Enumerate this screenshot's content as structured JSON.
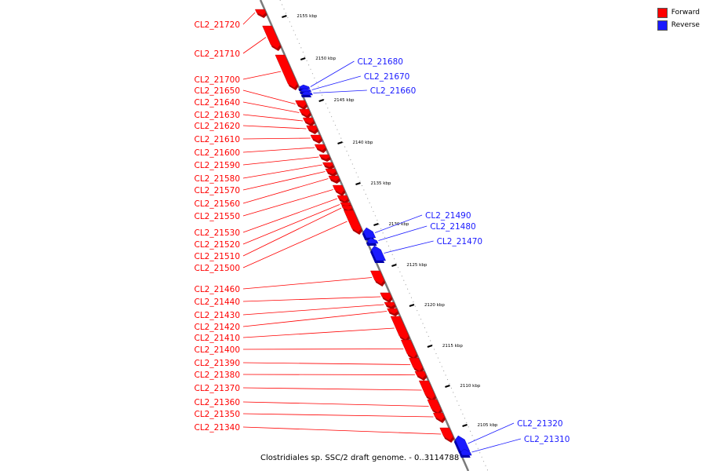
{
  "legend": {
    "forward": {
      "label": "Forward",
      "color": "#ff0000"
    },
    "reverse": {
      "label": "Reverse",
      "color": "#1a1aff"
    }
  },
  "caption": "Clostridiales sp. SSC/2 draft genome. - 0..3114788",
  "ticks": [
    {
      "label": "2155 kbp"
    },
    {
      "label": "2150 kbp"
    },
    {
      "label": "2145 kbp"
    },
    {
      "label": "2140 kbp"
    },
    {
      "label": "2135 kbp"
    },
    {
      "label": "2130 kbp"
    },
    {
      "label": "2125 kbp"
    },
    {
      "label": "2120 kbp"
    },
    {
      "label": "2115 kbp"
    },
    {
      "label": "2110 kbp"
    },
    {
      "label": "2105 kbp"
    }
  ],
  "genes": [
    {
      "name": "CL2_21720",
      "strand": "forward"
    },
    {
      "name": "CL2_21710",
      "strand": "forward"
    },
    {
      "name": "CL2_21700",
      "strand": "forward"
    },
    {
      "name": "CL2_21680",
      "strand": "reverse"
    },
    {
      "name": "CL2_21670",
      "strand": "reverse"
    },
    {
      "name": "CL2_21660",
      "strand": "reverse"
    },
    {
      "name": "CL2_21650",
      "strand": "forward"
    },
    {
      "name": "CL2_21640",
      "strand": "forward"
    },
    {
      "name": "CL2_21630",
      "strand": "forward"
    },
    {
      "name": "CL2_21620",
      "strand": "forward"
    },
    {
      "name": "CL2_21610",
      "strand": "forward"
    },
    {
      "name": "CL2_21600",
      "strand": "forward"
    },
    {
      "name": "CL2_21590",
      "strand": "forward"
    },
    {
      "name": "CL2_21580",
      "strand": "forward"
    },
    {
      "name": "CL2_21570",
      "strand": "forward"
    },
    {
      "name": "CL2_21560",
      "strand": "forward"
    },
    {
      "name": "CL2_21550",
      "strand": "forward"
    },
    {
      "name": "CL2_21530",
      "strand": "forward"
    },
    {
      "name": "CL2_21520",
      "strand": "forward"
    },
    {
      "name": "CL2_21510",
      "strand": "forward"
    },
    {
      "name": "CL2_21500",
      "strand": "forward"
    },
    {
      "name": "CL2_21490",
      "strand": "reverse"
    },
    {
      "name": "CL2_21480",
      "strand": "reverse"
    },
    {
      "name": "CL2_21470",
      "strand": "reverse"
    },
    {
      "name": "CL2_21460",
      "strand": "forward"
    },
    {
      "name": "CL2_21440",
      "strand": "forward"
    },
    {
      "name": "CL2_21430",
      "strand": "forward"
    },
    {
      "name": "CL2_21420",
      "strand": "forward"
    },
    {
      "name": "CL2_21410",
      "strand": "forward"
    },
    {
      "name": "CL2_21400",
      "strand": "forward"
    },
    {
      "name": "CL2_21390",
      "strand": "forward"
    },
    {
      "name": "CL2_21380",
      "strand": "forward"
    },
    {
      "name": "CL2_21370",
      "strand": "forward"
    },
    {
      "name": "CL2_21360",
      "strand": "forward"
    },
    {
      "name": "CL2_21350",
      "strand": "forward"
    },
    {
      "name": "CL2_21340",
      "strand": "forward"
    },
    {
      "name": "CL2_21320",
      "strand": "reverse"
    },
    {
      "name": "CL2_21310",
      "strand": "reverse"
    }
  ]
}
